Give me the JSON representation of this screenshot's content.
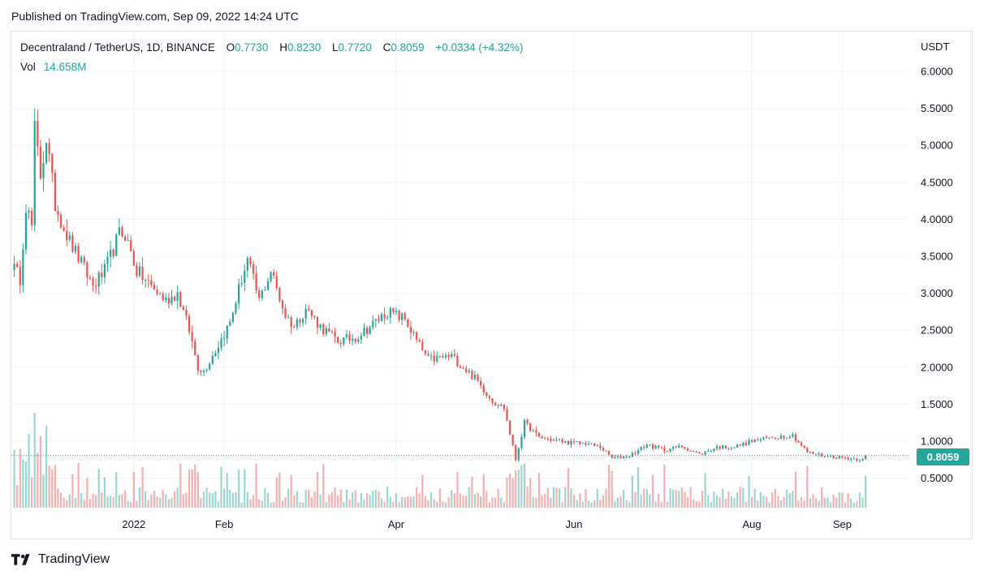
{
  "header": {
    "published": "Published on TradingView.com, Sep 09, 2022 14:24 UTC"
  },
  "legend": {
    "symbol": "Decentraland / TetherUS, 1D, BINANCE",
    "o_label": "O",
    "o_value": "0.7730",
    "h_label": "H",
    "h_value": "0.8230",
    "l_label": "L",
    "l_value": "0.7720",
    "c_label": "C",
    "c_value": "0.8059",
    "change": "+0.0334 (+4.32%)",
    "vol_label": "Vol",
    "vol_value": "14.658M"
  },
  "footer": {
    "brand": "TradingView"
  },
  "colors": {
    "up": "#26a69a",
    "down": "#ef5350",
    "grid": "#f0f3fa",
    "text": "#131722"
  },
  "chart_data": {
    "type": "candlestick",
    "symbol": "Decentraland / TetherUS",
    "interval": "1D",
    "exchange": "BINANCE",
    "y_unit": "USDT",
    "y_ticks": [
      "6.0000",
      "5.5000",
      "5.0000",
      "4.5000",
      "4.0000",
      "3.5000",
      "3.0000",
      "2.5000",
      "2.0000",
      "1.5000",
      "1.0000",
      "0.5000"
    ],
    "ylim": [
      0.0,
      6.0
    ],
    "x_ticks": [
      {
        "label": "2022",
        "date": "2022-01-01"
      },
      {
        "label": "Feb",
        "date": "2022-02-01"
      },
      {
        "label": "Apr",
        "date": "2022-04-01"
      },
      {
        "label": "Jun",
        "date": "2022-06-01"
      },
      {
        "label": "Aug",
        "date": "2022-08-01"
      },
      {
        "label": "Sep",
        "date": "2022-09-01"
      }
    ],
    "x_range": [
      "2021-11-20",
      "2022-09-24"
    ],
    "last_price": "0.8059",
    "close_series": {
      "start_date": "2021-11-20",
      "keypoints": [
        [
          "2021-11-20",
          3.4
        ],
        [
          "2021-11-23",
          3.2
        ],
        [
          "2021-11-25",
          4.2
        ],
        [
          "2021-11-27",
          3.9
        ],
        [
          "2021-11-28",
          5.2
        ],
        [
          "2021-11-30",
          4.6
        ],
        [
          "2021-12-02",
          5.1
        ],
        [
          "2021-12-05",
          4.2
        ],
        [
          "2021-12-10",
          3.7
        ],
        [
          "2021-12-14",
          3.4
        ],
        [
          "2021-12-18",
          3.1
        ],
        [
          "2021-12-22",
          3.3
        ],
        [
          "2021-12-27",
          3.8
        ],
        [
          "2021-12-29",
          3.8
        ],
        [
          "2022-01-02",
          3.3
        ],
        [
          "2022-01-08",
          3.05
        ],
        [
          "2022-01-12",
          2.9
        ],
        [
          "2022-01-16",
          3.0
        ],
        [
          "2022-01-20",
          2.5
        ],
        [
          "2022-01-23",
          2.0
        ],
        [
          "2022-01-25",
          1.95
        ],
        [
          "2022-01-30",
          2.3
        ],
        [
          "2022-02-03",
          2.6
        ],
        [
          "2022-02-07",
          3.2
        ],
        [
          "2022-02-09",
          3.45
        ],
        [
          "2022-02-13",
          2.9
        ],
        [
          "2022-02-17",
          3.3
        ],
        [
          "2022-02-22",
          2.7
        ],
        [
          "2022-02-25",
          2.55
        ],
        [
          "2022-03-01",
          2.8
        ],
        [
          "2022-03-06",
          2.55
        ],
        [
          "2022-03-12",
          2.35
        ],
        [
          "2022-03-18",
          2.4
        ],
        [
          "2022-03-23",
          2.55
        ],
        [
          "2022-03-29",
          2.75
        ],
        [
          "2022-04-04",
          2.65
        ],
        [
          "2022-04-08",
          2.35
        ],
        [
          "2022-04-12",
          2.1
        ],
        [
          "2022-04-20",
          2.15
        ],
        [
          "2022-04-28",
          1.85
        ],
        [
          "2022-05-04",
          1.55
        ],
        [
          "2022-05-08",
          1.45
        ],
        [
          "2022-05-12",
          0.75
        ],
        [
          "2022-05-15",
          1.25
        ],
        [
          "2022-05-20",
          1.05
        ],
        [
          "2022-05-30",
          0.98
        ],
        [
          "2022-06-05",
          0.97
        ],
        [
          "2022-06-10",
          0.92
        ],
        [
          "2022-06-14",
          0.77
        ],
        [
          "2022-06-20",
          0.8
        ],
        [
          "2022-06-26",
          0.95
        ],
        [
          "2022-07-02",
          0.88
        ],
        [
          "2022-07-08",
          0.93
        ],
        [
          "2022-07-14",
          0.82
        ],
        [
          "2022-07-20",
          0.92
        ],
        [
          "2022-07-26",
          0.92
        ],
        [
          "2022-08-01",
          1.0
        ],
        [
          "2022-08-08",
          1.05
        ],
        [
          "2022-08-15",
          1.08
        ],
        [
          "2022-08-20",
          0.85
        ],
        [
          "2022-08-26",
          0.8
        ],
        [
          "2022-09-03",
          0.77
        ],
        [
          "2022-09-07",
          0.75
        ],
        [
          "2022-09-09",
          0.8059
        ]
      ]
    },
    "volume": {
      "latest": "14.658M",
      "pane": "bottom overlay"
    },
    "grid": true
  }
}
